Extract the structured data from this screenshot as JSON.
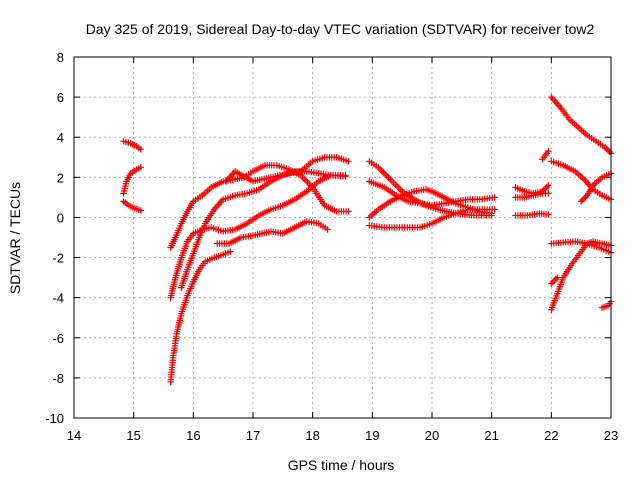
{
  "chart_data": {
    "type": "scatter",
    "title": "Day 325 of 2019, Sidereal Day-to-day VTEC variation (SDTVAR) for receiver tow2",
    "xlabel": "GPS time / hours",
    "ylabel": "SDTVAR / TECUs",
    "xlim": [
      14,
      23
    ],
    "ylim": [
      -10,
      8
    ],
    "xticks": [
      14,
      15,
      16,
      17,
      18,
      19,
      20,
      21,
      22,
      23
    ],
    "yticks": [
      -10,
      -8,
      -6,
      -4,
      -2,
      0,
      2,
      4,
      6,
      8
    ],
    "grid": true,
    "marker": "+",
    "color": "#ff0000",
    "series": [
      {
        "name": "s1",
        "points": [
          [
            14.83,
            3.8
          ],
          [
            14.95,
            3.7
          ],
          [
            15.05,
            3.55
          ],
          [
            15.12,
            3.4
          ]
        ]
      },
      {
        "name": "s2",
        "points": [
          [
            14.83,
            1.2
          ],
          [
            14.88,
            1.8
          ],
          [
            14.95,
            2.2
          ],
          [
            15.05,
            2.4
          ],
          [
            15.12,
            2.5
          ]
        ]
      },
      {
        "name": "s3",
        "points": [
          [
            14.83,
            0.8
          ],
          [
            14.92,
            0.6
          ],
          [
            15.02,
            0.45
          ],
          [
            15.12,
            0.35
          ]
        ]
      },
      {
        "name": "s4",
        "points": [
          [
            15.62,
            -1.5
          ],
          [
            15.7,
            -1.0
          ],
          [
            15.8,
            -0.3
          ],
          [
            15.9,
            0.3
          ],
          [
            16.0,
            0.8
          ],
          [
            16.15,
            1.1
          ],
          [
            16.3,
            1.5
          ],
          [
            16.5,
            1.8
          ],
          [
            16.7,
            1.9
          ],
          [
            16.85,
            2.0
          ],
          [
            17.0,
            2.3
          ],
          [
            17.2,
            2.6
          ],
          [
            17.35,
            2.6
          ]
        ]
      },
      {
        "name": "s5",
        "points": [
          [
            15.62,
            -8.2
          ],
          [
            15.66,
            -7.0
          ],
          [
            15.72,
            -5.8
          ],
          [
            15.8,
            -4.8
          ],
          [
            15.9,
            -3.9
          ],
          [
            16.0,
            -3.2
          ],
          [
            16.1,
            -2.6
          ],
          [
            16.2,
            -2.2
          ],
          [
            16.35,
            -2.0
          ],
          [
            16.5,
            -1.85
          ],
          [
            16.62,
            -1.7
          ]
        ]
      },
      {
        "name": "s6",
        "points": [
          [
            15.62,
            -4.0
          ],
          [
            15.7,
            -3.0
          ],
          [
            15.8,
            -2.0
          ],
          [
            15.9,
            -1.2
          ],
          [
            16.0,
            -0.8
          ],
          [
            16.15,
            -0.6
          ],
          [
            16.3,
            -0.5
          ],
          [
            16.5,
            -0.7
          ],
          [
            16.7,
            -0.6
          ],
          [
            16.9,
            -0.3
          ],
          [
            17.1,
            0.1
          ],
          [
            17.3,
            0.4
          ],
          [
            17.5,
            0.6
          ],
          [
            17.7,
            0.9
          ],
          [
            17.9,
            1.3
          ],
          [
            18.1,
            1.8
          ],
          [
            18.3,
            2.1
          ],
          [
            18.55,
            2.1
          ]
        ]
      },
      {
        "name": "s7",
        "points": [
          [
            15.8,
            -3.5
          ],
          [
            15.9,
            -2.6
          ],
          [
            16.0,
            -1.8
          ],
          [
            16.1,
            -1.0
          ],
          [
            16.2,
            -0.3
          ],
          [
            16.35,
            0.4
          ],
          [
            16.5,
            0.9
          ],
          [
            16.7,
            1.1
          ],
          [
            16.9,
            1.2
          ],
          [
            17.1,
            1.4
          ],
          [
            17.3,
            1.8
          ],
          [
            17.5,
            2.1
          ],
          [
            17.7,
            2.3
          ],
          [
            17.9,
            2.3
          ],
          [
            18.1,
            2.2
          ],
          [
            18.3,
            2.1
          ],
          [
            18.55,
            2.05
          ]
        ]
      },
      {
        "name": "s8",
        "points": [
          [
            16.55,
            1.8
          ],
          [
            16.7,
            2.3
          ],
          [
            17.0,
            1.8
          ],
          [
            17.3,
            2.0
          ],
          [
            17.6,
            2.2
          ],
          [
            17.8,
            2.3
          ],
          [
            18.0,
            2.8
          ],
          [
            18.2,
            3.0
          ],
          [
            18.4,
            3.0
          ],
          [
            18.6,
            2.8
          ]
        ]
      },
      {
        "name": "s9",
        "points": [
          [
            16.4,
            -1.3
          ],
          [
            16.6,
            -1.3
          ],
          [
            16.8,
            -1.0
          ],
          [
            17.0,
            -0.9
          ],
          [
            17.3,
            -0.7
          ],
          [
            17.5,
            -0.8
          ],
          [
            17.7,
            -0.5
          ],
          [
            17.9,
            -0.2
          ],
          [
            18.1,
            -0.3
          ],
          [
            18.25,
            -0.6
          ]
        ]
      },
      {
        "name": "s10",
        "points": [
          [
            17.4,
            2.6
          ],
          [
            17.6,
            2.4
          ],
          [
            17.8,
            2.1
          ],
          [
            18.0,
            1.5
          ],
          [
            18.2,
            0.6
          ],
          [
            18.4,
            0.3
          ],
          [
            18.6,
            0.3
          ]
        ]
      },
      {
        "name": "s11",
        "points": [
          [
            18.95,
            2.8
          ],
          [
            19.1,
            2.5
          ],
          [
            19.3,
            1.9
          ],
          [
            19.5,
            1.3
          ],
          [
            19.7,
            0.9
          ],
          [
            19.9,
            0.6
          ],
          [
            20.1,
            0.4
          ],
          [
            20.4,
            0.2
          ],
          [
            20.7,
            0.1
          ],
          [
            21.0,
            0.1
          ]
        ]
      },
      {
        "name": "s12",
        "points": [
          [
            18.95,
            1.8
          ],
          [
            19.2,
            1.5
          ],
          [
            19.4,
            1.1
          ],
          [
            19.6,
            0.8
          ],
          [
            19.8,
            0.7
          ],
          [
            20.0,
            0.6
          ],
          [
            20.2,
            0.7
          ],
          [
            20.4,
            0.8
          ],
          [
            20.6,
            0.9
          ],
          [
            20.8,
            0.9
          ],
          [
            21.05,
            1.0
          ]
        ]
      },
      {
        "name": "s13",
        "points": [
          [
            18.95,
            0.0
          ],
          [
            19.1,
            0.4
          ],
          [
            19.3,
            0.8
          ],
          [
            19.5,
            1.1
          ],
          [
            19.7,
            1.3
          ],
          [
            19.9,
            1.4
          ],
          [
            20.0,
            1.3
          ],
          [
            20.2,
            1.0
          ],
          [
            20.4,
            0.7
          ],
          [
            20.6,
            0.5
          ],
          [
            20.8,
            0.3
          ],
          [
            21.0,
            0.2
          ]
        ]
      },
      {
        "name": "s14",
        "points": [
          [
            18.95,
            -0.4
          ],
          [
            19.2,
            -0.5
          ],
          [
            19.5,
            -0.5
          ],
          [
            19.8,
            -0.5
          ],
          [
            20.0,
            -0.3
          ],
          [
            20.2,
            0.0
          ],
          [
            20.4,
            0.2
          ],
          [
            20.6,
            0.4
          ],
          [
            20.8,
            0.4
          ],
          [
            21.05,
            0.4
          ]
        ]
      },
      {
        "name": "s15",
        "points": [
          [
            21.4,
            1.5
          ],
          [
            21.55,
            1.3
          ],
          [
            21.7,
            1.2
          ],
          [
            21.85,
            1.3
          ],
          [
            21.95,
            1.6
          ]
        ]
      },
      {
        "name": "s16",
        "points": [
          [
            21.4,
            1.0
          ],
          [
            21.55,
            1.0
          ],
          [
            21.7,
            1.1
          ],
          [
            21.85,
            1.2
          ],
          [
            21.95,
            1.2
          ]
        ]
      },
      {
        "name": "s17",
        "points": [
          [
            21.4,
            0.1
          ],
          [
            21.6,
            0.1
          ],
          [
            21.8,
            0.2
          ],
          [
            21.95,
            0.15
          ]
        ]
      },
      {
        "name": "s18",
        "points": [
          [
            21.85,
            2.9
          ],
          [
            21.95,
            3.3
          ]
        ]
      },
      {
        "name": "s19",
        "points": [
          [
            22.0,
            6.0
          ],
          [
            22.15,
            5.5
          ],
          [
            22.3,
            4.9
          ],
          [
            22.45,
            4.5
          ],
          [
            22.6,
            4.1
          ],
          [
            22.75,
            3.8
          ],
          [
            22.9,
            3.5
          ],
          [
            23.0,
            3.2
          ]
        ]
      },
      {
        "name": "s20",
        "points": [
          [
            22.0,
            2.8
          ],
          [
            22.2,
            2.6
          ],
          [
            22.4,
            2.3
          ],
          [
            22.55,
            1.9
          ],
          [
            22.7,
            1.4
          ],
          [
            22.85,
            1.1
          ],
          [
            23.0,
            0.9
          ]
        ]
      },
      {
        "name": "s21",
        "points": [
          [
            22.5,
            0.8
          ],
          [
            22.6,
            1.1
          ],
          [
            22.7,
            1.6
          ],
          [
            22.85,
            2.0
          ],
          [
            23.0,
            2.2
          ]
        ]
      },
      {
        "name": "s22",
        "points": [
          [
            22.0,
            -1.3
          ],
          [
            22.2,
            -1.25
          ],
          [
            22.4,
            -1.2
          ],
          [
            22.6,
            -1.3
          ],
          [
            22.8,
            -1.5
          ],
          [
            23.0,
            -1.75
          ]
        ]
      },
      {
        "name": "s23",
        "points": [
          [
            22.0,
            -4.6
          ],
          [
            22.1,
            -3.8
          ],
          [
            22.2,
            -3.0
          ],
          [
            22.35,
            -2.3
          ],
          [
            22.5,
            -1.7
          ],
          [
            22.6,
            -1.3
          ],
          [
            22.7,
            -1.2
          ],
          [
            22.85,
            -1.3
          ],
          [
            23.0,
            -1.4
          ]
        ]
      },
      {
        "name": "s24",
        "points": [
          [
            22.0,
            -3.3
          ],
          [
            22.1,
            -3.0
          ]
        ]
      },
      {
        "name": "s25",
        "points": [
          [
            22.85,
            -4.5
          ],
          [
            22.95,
            -4.4
          ],
          [
            23.0,
            -4.2
          ]
        ]
      }
    ]
  }
}
